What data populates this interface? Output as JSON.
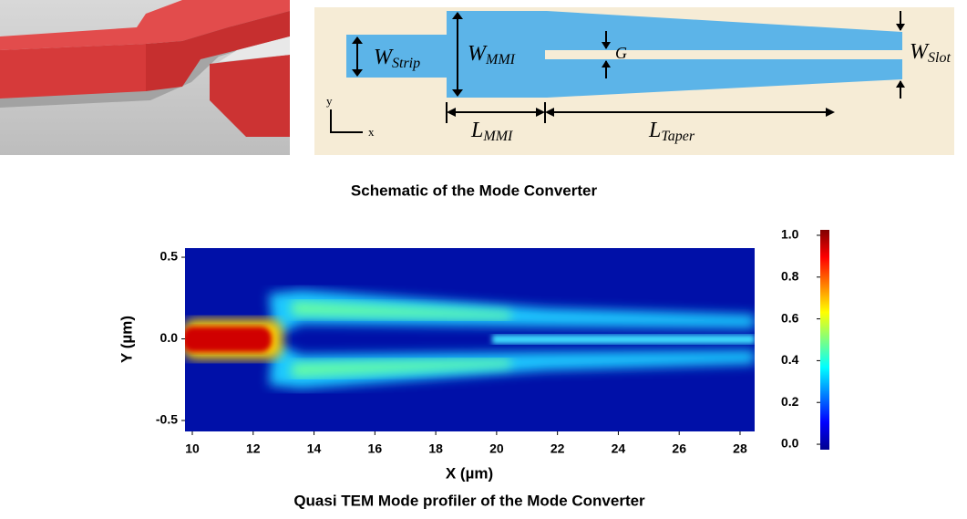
{
  "schematic": {
    "labels": {
      "w_strip": {
        "symbol": "W",
        "subscript": "Strip"
      },
      "w_mmi": {
        "symbol": "W",
        "subscript": "MMI"
      },
      "gap": {
        "symbol": "G"
      },
      "w_slot": {
        "symbol": "W",
        "subscript": "Slot"
      },
      "l_mmi": {
        "symbol": "L",
        "subscript": "MMI"
      },
      "l_taper": {
        "symbol": "L",
        "subscript": "Taper"
      },
      "axis_y": "y",
      "axis_x": "x"
    },
    "caption": "Schematic of the Mode Converter"
  },
  "field_plot": {
    "x_label": "X (µm)",
    "y_label": "Y (µm)",
    "xlim": [
      9.76,
      28.48
    ],
    "ylim": [
      -0.567,
      0.556
    ],
    "xticks": [
      10,
      12,
      14,
      16,
      18,
      20,
      22,
      24,
      26,
      28
    ],
    "yticks": [
      0.5,
      {
        "value": 0,
        "label": "0.0"
      },
      -0.5
    ],
    "colorbar_lim": [
      -0.026,
      1.026
    ],
    "colorbar_ticks": [
      {
        "value": 1,
        "label": "1.0"
      },
      0.8,
      0.6,
      0.4,
      0.2,
      {
        "value": 0,
        "label": "0.0"
      }
    ],
    "caption": "Quasi TEM Mode profiler of the Mode Converter"
  }
}
